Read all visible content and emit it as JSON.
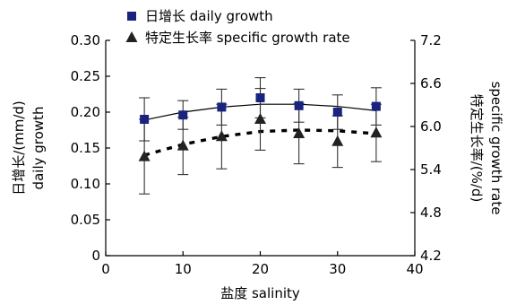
{
  "chart_data": {
    "type": "scatter",
    "xlabel": "盐度  salinity",
    "ylabel_left": [
      "日增长/(mm/d)",
      "daily growth"
    ],
    "ylabel_right": [
      "特定生长率/(%/d)",
      "specific growth rate"
    ],
    "xlim": [
      0,
      40
    ],
    "x_ticks": [
      0,
      10,
      20,
      30,
      40
    ],
    "ylim_left": [
      0,
      0.3
    ],
    "y_left_ticks": [
      0,
      0.05,
      0.1,
      0.15,
      0.2,
      0.25,
      0.3
    ],
    "y_left_tick_labels": [
      "0",
      "0.05",
      "0.10",
      "0.15",
      "0.20",
      "0.25",
      "0.30"
    ],
    "ylim_right": [
      4.2,
      7.2
    ],
    "y_right_ticks": [
      4.2,
      4.8,
      5.4,
      6.0,
      6.6,
      7.2
    ],
    "y_right_tick_labels": [
      "4.2",
      "4.8",
      "5.4",
      "6.0",
      "6.6",
      "7.2"
    ],
    "x": [
      5,
      10,
      15,
      20,
      25,
      30,
      35
    ],
    "series": [
      {
        "name": "日增长 daily growth",
        "axis": "left",
        "marker": "square",
        "color": "#1a237e",
        "trend": "solid",
        "values": [
          0.19,
          0.196,
          0.207,
          0.22,
          0.209,
          0.2,
          0.208
        ],
        "errors": [
          0.03,
          0.02,
          0.025,
          0.028,
          0.023,
          0.024,
          0.026
        ],
        "trend_values": [
          0.189,
          0.2,
          0.207,
          0.211,
          0.211,
          0.208,
          0.202
        ]
      },
      {
        "name": "特定生长率 specific growth rate",
        "axis": "right",
        "marker": "triangle",
        "color": "#222222",
        "trend": "dashed",
        "values": [
          5.58,
          5.73,
          5.86,
          6.1,
          5.9,
          5.79,
          5.91
        ],
        "errors": [
          0.52,
          0.4,
          0.45,
          0.43,
          0.42,
          0.36,
          0.4
        ],
        "trend_values": [
          5.6,
          5.75,
          5.86,
          5.93,
          5.95,
          5.94,
          5.9
        ]
      }
    ]
  }
}
